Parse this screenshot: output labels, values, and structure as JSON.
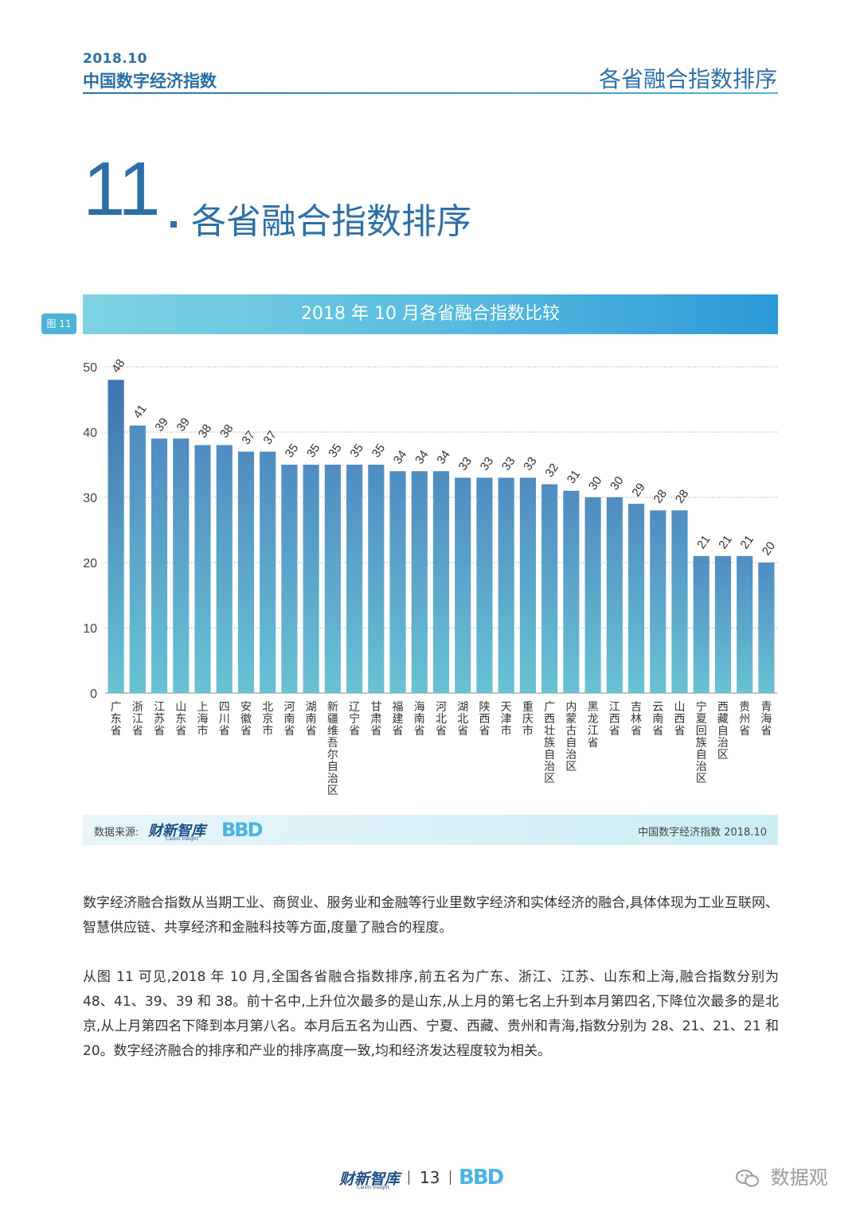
{
  "header": {
    "date": "2018.10",
    "report_title": "中国数字经济指数",
    "section_right": "各省融合指数排序"
  },
  "section": {
    "number": "11",
    "title": "各省融合指数排序"
  },
  "figure": {
    "tag": "图 11",
    "title": "2018 年 10 月各省融合指数比较"
  },
  "chart_data": {
    "type": "bar",
    "title": "2018 年 10 月各省融合指数比较",
    "xlabel": "",
    "ylabel": "",
    "ylim": [
      0,
      50
    ],
    "yticks": [
      "0",
      "10",
      "20",
      "30",
      "40",
      "50"
    ],
    "grid": true,
    "categories": [
      "广东省",
      "浙江省",
      "江苏省",
      "山东省",
      "上海市",
      "四川省",
      "安徽省",
      "北京市",
      "河南省",
      "湖南省",
      "新疆维吾尔自治区",
      "辽宁省",
      "甘肃省",
      "福建省",
      "海南省",
      "河北省",
      "湖北省",
      "陕西省",
      "天津市",
      "重庆市",
      "广西壮族自治区",
      "内蒙古自治区",
      "黑龙江省",
      "江西省",
      "吉林省",
      "云南省",
      "山西省",
      "宁夏回族自治区",
      "西藏自治区",
      "贵州省",
      "青海省"
    ],
    "values": [
      48,
      41,
      39,
      39,
      38,
      38,
      37,
      37,
      35,
      35,
      35,
      35,
      35,
      34,
      34,
      34,
      33,
      33,
      33,
      33,
      32,
      31,
      30,
      30,
      29,
      28,
      28,
      21,
      21,
      21,
      20
    ],
    "colors": {
      "top": "#4f8cc1",
      "bottom": "#69c2d4",
      "first_top": "#3f72b1"
    }
  },
  "source": {
    "label": "数据来源:",
    "logo": "财新智库",
    "logo_sub": "Caixin Insight",
    "logo2": "BBD",
    "right": "中国数字经济指数 2018.10"
  },
  "paragraphs": {
    "p1": "数字经济融合指数从当期工业、商贸业、服务业和金融等行业里数字经济和实体经济的融合,具体体现为工业互联网、智慧供应链、共享经济和金融科技等方面,度量了融合的程度。",
    "p2": "从图 11 可见,2018 年 10 月,全国各省融合指数排序,前五名为广东、浙江、江苏、山东和上海,融合指数分别为 48、41、39、39 和 38。前十名中,上升位次最多的是山东,从上月的第七名上升到本月第四名,下降位次最多的是北京,从上月第四名下降到本月第八名。本月后五名为山西、宁夏、西藏、贵州和青海,指数分别为 28、21、21、21 和 20。数字经济融合的排序和产业的排序高度一致,均和经济发达程度较为相关。"
  },
  "footer": {
    "logo": "财新智库",
    "logo_sub": "Caixin Insight",
    "page": "13",
    "logo2": "BBD"
  },
  "watermark": {
    "text": "数据观",
    "icon": "wechat-icon"
  }
}
